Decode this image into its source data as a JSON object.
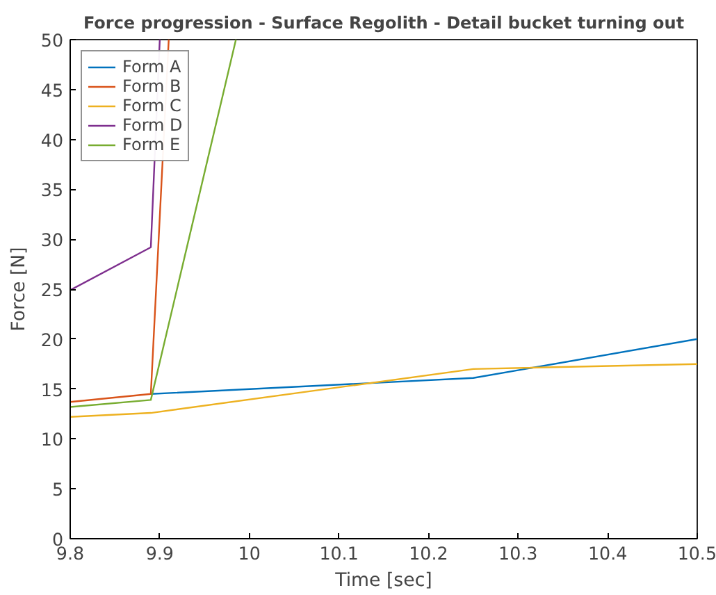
{
  "chart_data": {
    "type": "line",
    "title": "Force progression - Surface Regolith - Detail bucket turning out",
    "xlabel": "Time [sec]",
    "ylabel": "Force [N]",
    "xlim": [
      9.8,
      10.5
    ],
    "ylim": [
      0,
      50
    ],
    "xticks": [
      9.8,
      9.9,
      {
        "value": 10.0,
        "label": "10"
      },
      10.1,
      10.2,
      10.3,
      10.4,
      10.5
    ],
    "yticks": [
      0,
      5,
      10,
      15,
      20,
      25,
      30,
      35,
      40,
      45,
      50
    ],
    "grid": false,
    "legend": "top left",
    "marker": "none",
    "line_style": "solid",
    "series": [
      {
        "name": "Form A",
        "color": "#0072bd",
        "x": [
          9.89,
          10.25,
          10.5
        ],
        "values": [
          14.5,
          16.1,
          20.0
        ]
      },
      {
        "name": "Form B",
        "color": "#d95319",
        "x": [
          9.8,
          9.89,
          9.91
        ],
        "values": [
          13.7,
          14.5,
          50
        ]
      },
      {
        "name": "Form C",
        "color": "#edb120",
        "x": [
          9.8,
          9.89,
          10.25,
          10.5
        ],
        "values": [
          12.2,
          12.6,
          17.0,
          17.5
        ]
      },
      {
        "name": "Form D",
        "color": "#7e2f8e",
        "x": [
          9.8,
          9.89,
          9.9
        ],
        "values": [
          24.9,
          29.2,
          50
        ]
      },
      {
        "name": "Form E",
        "color": "#77ac30",
        "x": [
          9.8,
          9.89,
          9.985
        ],
        "values": [
          13.2,
          13.9,
          50
        ]
      }
    ]
  }
}
